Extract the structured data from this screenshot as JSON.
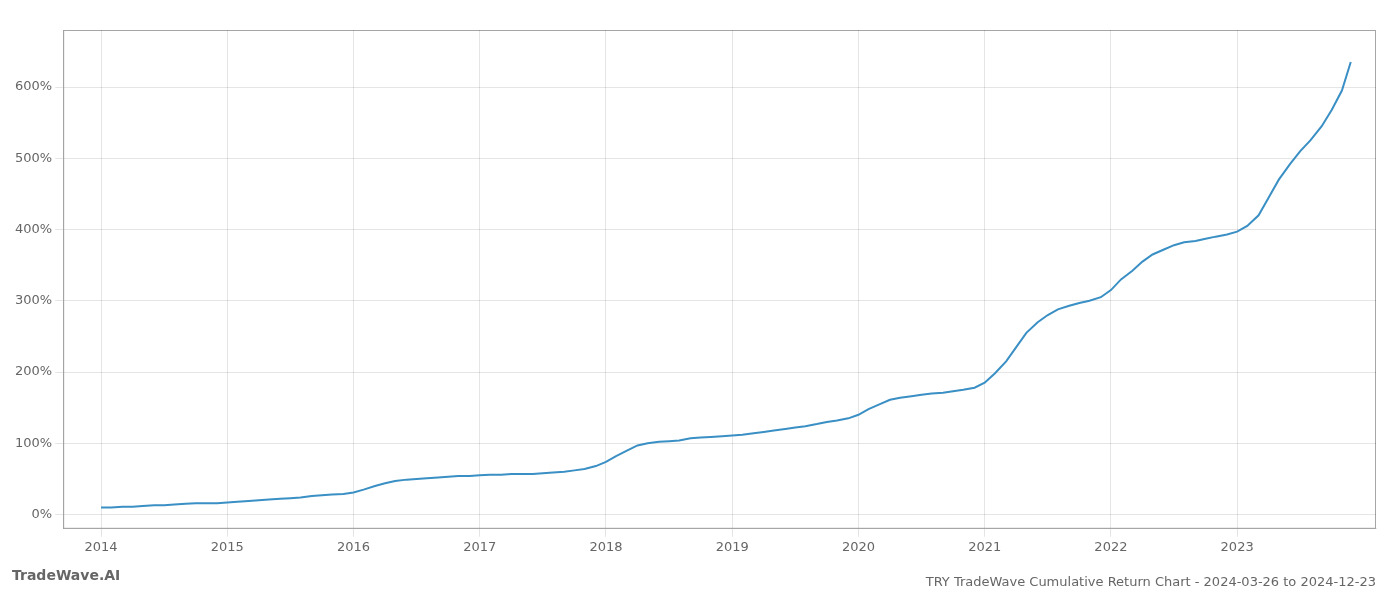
{
  "chart_data": {
    "type": "line",
    "title": "TRY TradeWave Cumulative Return Chart - 2024-03-26 to 2024-12-23",
    "annotations": [
      "TradeWave.AI"
    ],
    "color": "#3a8fc4",
    "grid": true,
    "x": [
      2014.0,
      2014.08,
      2014.17,
      2014.25,
      2014.33,
      2014.42,
      2014.5,
      2014.58,
      2014.67,
      2014.75,
      2014.83,
      2014.92,
      2015.0,
      2015.08,
      2015.17,
      2015.25,
      2015.33,
      2015.42,
      2015.5,
      2015.58,
      2015.67,
      2015.75,
      2015.83,
      2015.92,
      2016.0,
      2016.08,
      2016.17,
      2016.25,
      2016.33,
      2016.42,
      2016.5,
      2016.58,
      2016.67,
      2016.75,
      2016.83,
      2016.92,
      2017.0,
      2017.08,
      2017.17,
      2017.25,
      2017.33,
      2017.42,
      2017.5,
      2017.58,
      2017.67,
      2017.75,
      2017.83,
      2017.92,
      2018.0,
      2018.08,
      2018.17,
      2018.25,
      2018.33,
      2018.42,
      2018.5,
      2018.58,
      2018.67,
      2018.75,
      2018.83,
      2018.92,
      2019.0,
      2019.08,
      2019.17,
      2019.25,
      2019.33,
      2019.42,
      2019.5,
      2019.58,
      2019.67,
      2019.75,
      2019.83,
      2019.92,
      2020.0,
      2020.08,
      2020.17,
      2020.25,
      2020.33,
      2020.42,
      2020.5,
      2020.58,
      2020.67,
      2020.75,
      2020.83,
      2020.92,
      2021.0,
      2021.08,
      2021.17,
      2021.25,
      2021.33,
      2021.42,
      2021.5,
      2021.58,
      2021.67,
      2021.75,
      2021.83,
      2021.92,
      2022.0,
      2022.08,
      2022.17,
      2022.25,
      2022.33,
      2022.42,
      2022.5,
      2022.58,
      2022.67,
      2022.75,
      2022.83,
      2022.92,
      2023.0,
      2023.08,
      2023.17,
      2023.25,
      2023.33,
      2023.42,
      2023.5,
      2023.58,
      2023.67,
      2023.75,
      2023.83,
      2023.9
    ],
    "values": [
      10,
      10,
      11,
      11,
      12,
      13,
      13,
      14,
      15,
      16,
      16,
      16,
      17,
      18,
      19,
      20,
      21,
      22,
      23,
      24,
      26,
      27,
      28,
      29,
      31,
      35,
      40,
      44,
      47,
      49,
      50,
      51,
      52,
      53,
      54,
      54,
      55,
      56,
      56,
      57,
      57,
      57,
      58,
      59,
      60,
      62,
      64,
      68,
      74,
      82,
      90,
      97,
      100,
      102,
      103,
      104,
      107,
      108,
      109,
      110,
      111,
      112,
      114,
      116,
      118,
      120,
      122,
      124,
      127,
      130,
      132,
      135,
      140,
      148,
      155,
      161,
      164,
      166,
      168,
      170,
      171,
      173,
      175,
      178,
      185,
      198,
      215,
      235,
      255,
      270,
      280,
      288,
      293,
      297,
      300,
      305,
      315,
      330,
      342,
      355,
      365,
      372,
      378,
      382,
      384,
      387,
      390,
      393,
      397,
      405,
      420,
      445,
      470,
      492,
      510,
      525,
      545,
      568,
      595,
      635
    ],
    "xlim": [
      2013.7,
      2024.1
    ],
    "xticks": [
      2014,
      2015,
      2016,
      2017,
      2018,
      2019,
      2020,
      2021,
      2022,
      2023
    ],
    "ylim": [
      -20,
      680
    ],
    "yticks": [
      {
        "value": 0,
        "label": "0%"
      },
      {
        "value": 100,
        "label": "100%"
      },
      {
        "value": 200,
        "label": "200%"
      },
      {
        "value": 300,
        "label": "300%"
      },
      {
        "value": 400,
        "label": "400%"
      },
      {
        "value": 500,
        "label": "500%"
      },
      {
        "value": 600,
        "label": "600%"
      }
    ]
  }
}
